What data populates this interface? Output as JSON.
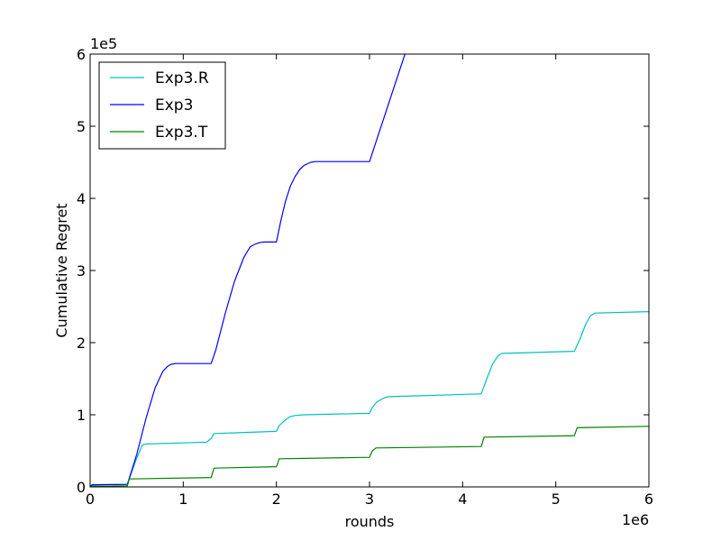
{
  "chart_data": {
    "type": "line",
    "title": "",
    "xlabel": "rounds",
    "ylabel": "Cumulative Regret",
    "xlim": [
      0,
      6000000
    ],
    "ylim": [
      0,
      600000
    ],
    "x_ticks": [
      0,
      1000000,
      2000000,
      3000000,
      4000000,
      5000000,
      6000000
    ],
    "x_tick_labels": [
      "0",
      "1",
      "2",
      "3",
      "4",
      "5",
      "6"
    ],
    "y_ticks": [
      0,
      100000,
      200000,
      300000,
      400000,
      500000,
      600000
    ],
    "y_tick_labels": [
      "0",
      "1",
      "2",
      "3",
      "4",
      "5",
      "6"
    ],
    "x_offset_label": "1e6",
    "y_offset_label": "1e5",
    "grid": false,
    "legend_position": "upper-left",
    "series": [
      {
        "name": "Exp3.R",
        "color": "#00bfbf",
        "x": [
          0,
          20000,
          400000,
          500000,
          560000,
          600000,
          1000000,
          1250000,
          1300000,
          1330000,
          2000000,
          2030000,
          2080000,
          2140000,
          2200000,
          2300000,
          3000000,
          3030000,
          3080000,
          3150000,
          3200000,
          3300000,
          4200000,
          4260000,
          4320000,
          4380000,
          4420000,
          5200000,
          5260000,
          5320000,
          5370000,
          5420000,
          6000000
        ],
        "y": [
          0,
          3000,
          3500,
          40000,
          58000,
          59500,
          61000,
          62000,
          67000,
          74000,
          77000,
          85000,
          91000,
          97000,
          99000,
          100000,
          102000,
          110000,
          118000,
          123000,
          125000,
          125500,
          129000,
          150000,
          170000,
          182000,
          185000,
          188000,
          205000,
          225000,
          237000,
          241000,
          243000
        ]
      },
      {
        "name": "Exp3",
        "color": "#0000ff",
        "x": [
          0,
          20000,
          400000,
          500000,
          600000,
          700000,
          780000,
          830000,
          870000,
          920000,
          1000000,
          1300000,
          1350000,
          1450000,
          1550000,
          1650000,
          1720000,
          1780000,
          1830000,
          1880000,
          2000000,
          2050000,
          2100000,
          2150000,
          2200000,
          2250000,
          2300000,
          2370000,
          2420000,
          2480000,
          3000000,
          3380000
        ],
        "y": [
          0,
          3000,
          3500,
          45000,
          95000,
          138000,
          160000,
          167000,
          170000,
          171000,
          171000,
          171000,
          190000,
          240000,
          285000,
          318000,
          333000,
          337000,
          339000,
          339500,
          339500,
          370000,
          397000,
          417000,
          430000,
          440000,
          446000,
          450000,
          451000,
          451000,
          451000,
          600000
        ]
      },
      {
        "name": "Exp3.T",
        "color": "#008000",
        "x": [
          0,
          20000,
          400000,
          420000,
          1300000,
          1330000,
          2000000,
          2030000,
          3000000,
          3030000,
          3070000,
          4200000,
          4230000,
          5200000,
          5230000,
          6000000
        ],
        "y": [
          0,
          1000,
          1500,
          11000,
          13000,
          26000,
          28000,
          39000,
          41000,
          50000,
          54000,
          56000,
          69000,
          71000,
          82000,
          84000
        ]
      }
    ]
  }
}
